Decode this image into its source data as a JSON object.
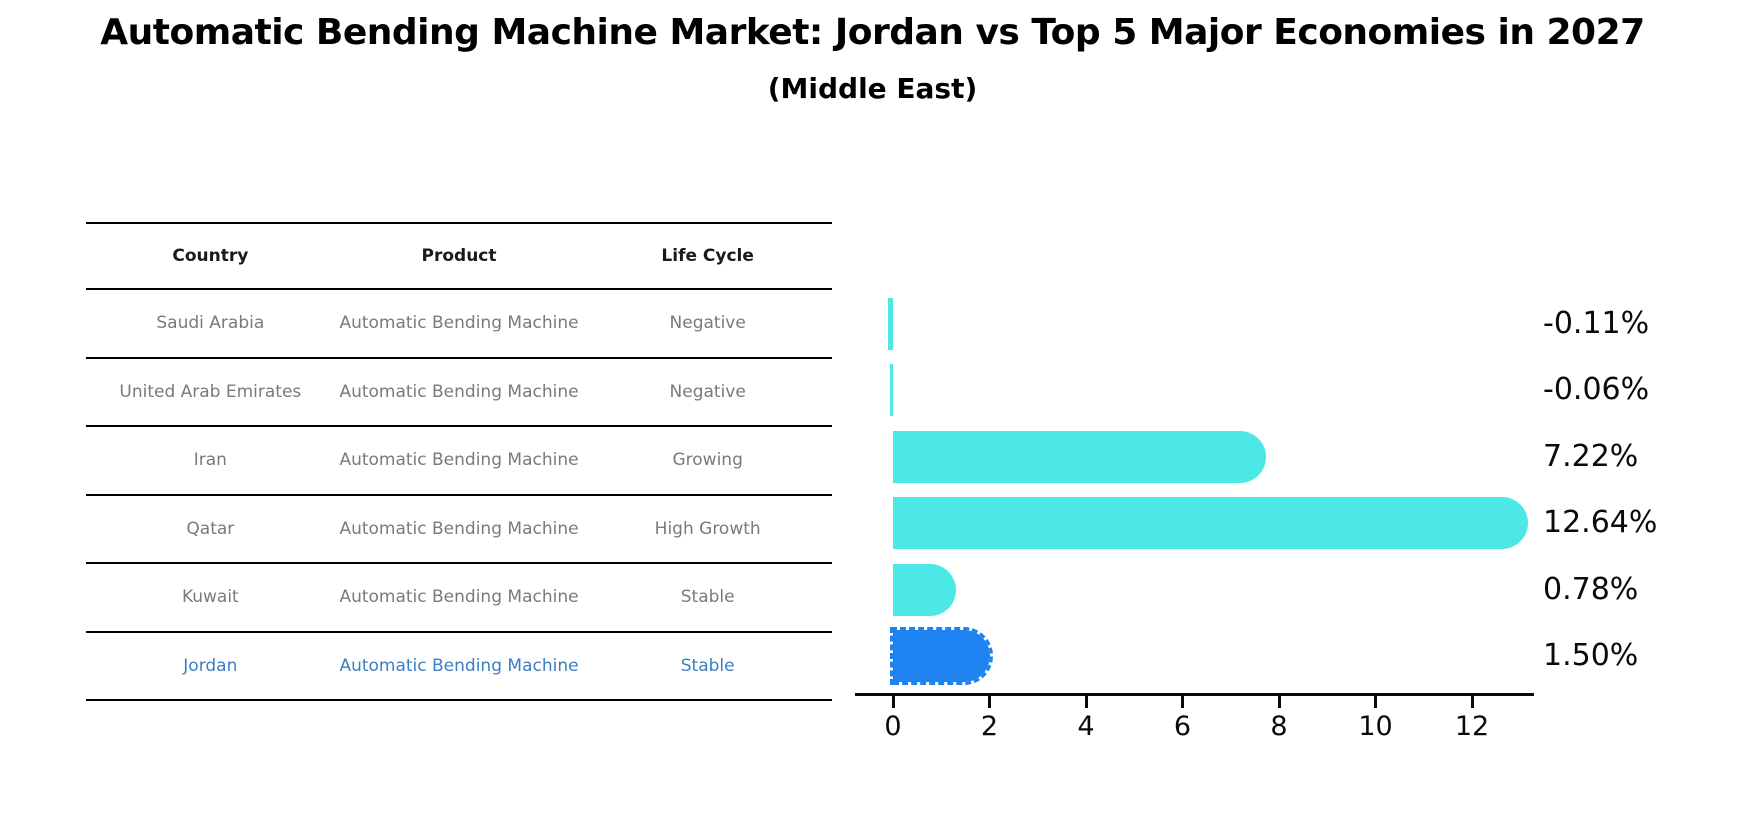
{
  "title": "Automatic Bending Machine Market: Jordan vs Top 5 Major Economies in 2027",
  "subtitle": "(Middle East)",
  "table": {
    "headers": [
      "Country",
      "Product",
      "Life Cycle"
    ],
    "rows": [
      {
        "country": "Saudi Arabia",
        "product": "Automatic Bending Machine",
        "life_cycle": "Negative",
        "highlighted": false
      },
      {
        "country": "United Arab Emirates",
        "product": "Automatic Bending Machine",
        "life_cycle": "Negative",
        "highlighted": false
      },
      {
        "country": "Iran",
        "product": "Automatic Bending Machine",
        "life_cycle": "Growing",
        "highlighted": false
      },
      {
        "country": "Qatar",
        "product": "Automatic Bending Machine",
        "life_cycle": "High Growth",
        "highlighted": false
      },
      {
        "country": "Kuwait",
        "product": "Automatic Bending Machine",
        "life_cycle": "Stable",
        "highlighted": false
      },
      {
        "country": "Jordan",
        "product": "Automatic Bending Machine",
        "life_cycle": "Stable",
        "highlighted": true
      }
    ]
  },
  "chart_data": {
    "type": "bar",
    "orientation": "horizontal",
    "title": "Automatic Bending Machine Market: Jordan vs Top 5 Major Economies in 2027",
    "subtitle": "(Middle East)",
    "categories": [
      "Saudi Arabia",
      "United Arab Emirates",
      "Iran",
      "Qatar",
      "Kuwait",
      "Jordan"
    ],
    "values": [
      -0.11,
      -0.06,
      7.22,
      12.64,
      0.78,
      1.5
    ],
    "value_labels": [
      "-0.11%",
      "-0.06%",
      "7.22%",
      "12.64%",
      "0.78%",
      "1.50%"
    ],
    "xticks": [
      0,
      2,
      4,
      6,
      8,
      10,
      12
    ],
    "xlim": [
      -0.8,
      13.3
    ],
    "xlabel": "",
    "ylabel": "",
    "grid": false,
    "legend": false,
    "bar_color": "#4be8e6",
    "highlight_color": "#1e82f0",
    "highlight_index": 5,
    "highlight_edge_style": "dashed",
    "axis_color": "#0a0a0a",
    "text_gray": "#7a7a7a",
    "highlight_text_color": "#3b7ec4"
  }
}
